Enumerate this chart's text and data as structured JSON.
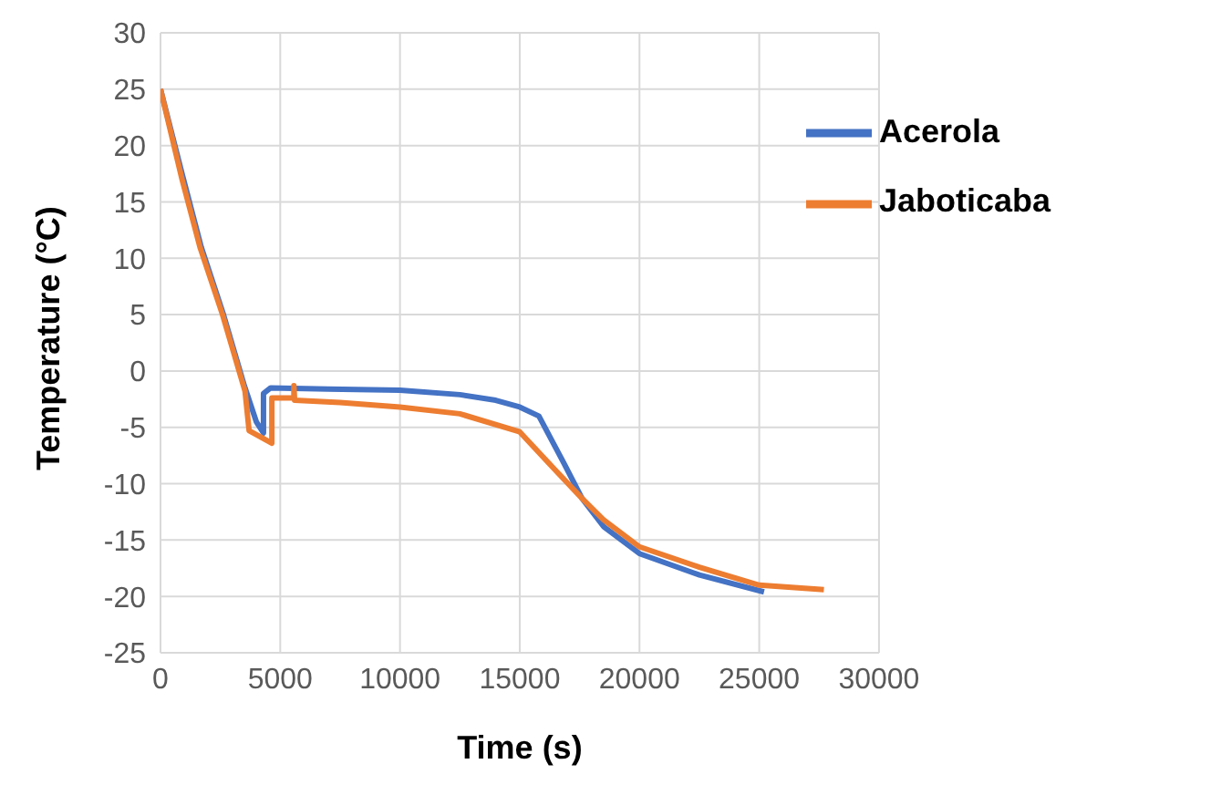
{
  "chart_data": {
    "type": "line",
    "xlabel": "Time (s)",
    "ylabel": "Temperature (°C)",
    "xlim": [
      0,
      30000
    ],
    "xticks": [
      0,
      5000,
      10000,
      15000,
      20000,
      25000,
      30000
    ],
    "ylim": [
      -25,
      30
    ],
    "yticks": [
      -25,
      -20,
      -15,
      -10,
      -5,
      0,
      5,
      10,
      15,
      20,
      25,
      30
    ],
    "grid": true,
    "legend": "top right",
    "marker": "none",
    "line_style": "solid",
    "series": [
      {
        "name": "Acerola",
        "color": "#4472c4",
        "x": [
          0,
          900,
          1700,
          2600,
          3500,
          4000,
          4300,
          4300,
          4600,
          7000,
          10000,
          12500,
          14000,
          15000,
          15800,
          16800,
          17600,
          18500,
          20000,
          22500,
          25200
        ],
        "values": [
          25,
          17.5,
          11,
          5.2,
          -1.3,
          -4.5,
          -5.5,
          -2,
          -1.5,
          -1.6,
          -1.7,
          -2.1,
          -2.6,
          -3.2,
          -4,
          -8,
          -11.3,
          -13.8,
          -16.2,
          -18.1,
          -19.6
        ]
      },
      {
        "name": "Jaboticaba",
        "color": "#ed7d31",
        "x": [
          0,
          900,
          1660,
          2590,
          3530,
          3700,
          4650,
          4650,
          5570,
          5570,
          5600,
          7500,
          10000,
          12500,
          15000,
          16400,
          17600,
          18500,
          20000,
          22500,
          25000,
          27700
        ],
        "values": [
          25,
          17,
          10.9,
          5,
          -1.8,
          -5.3,
          -6.4,
          -2.4,
          -2.4,
          -1.3,
          -2.6,
          -2.8,
          -3.2,
          -3.8,
          -5.4,
          -8.6,
          -11.3,
          -13.2,
          -15.6,
          -17.4,
          -19,
          -19.4
        ]
      }
    ]
  }
}
